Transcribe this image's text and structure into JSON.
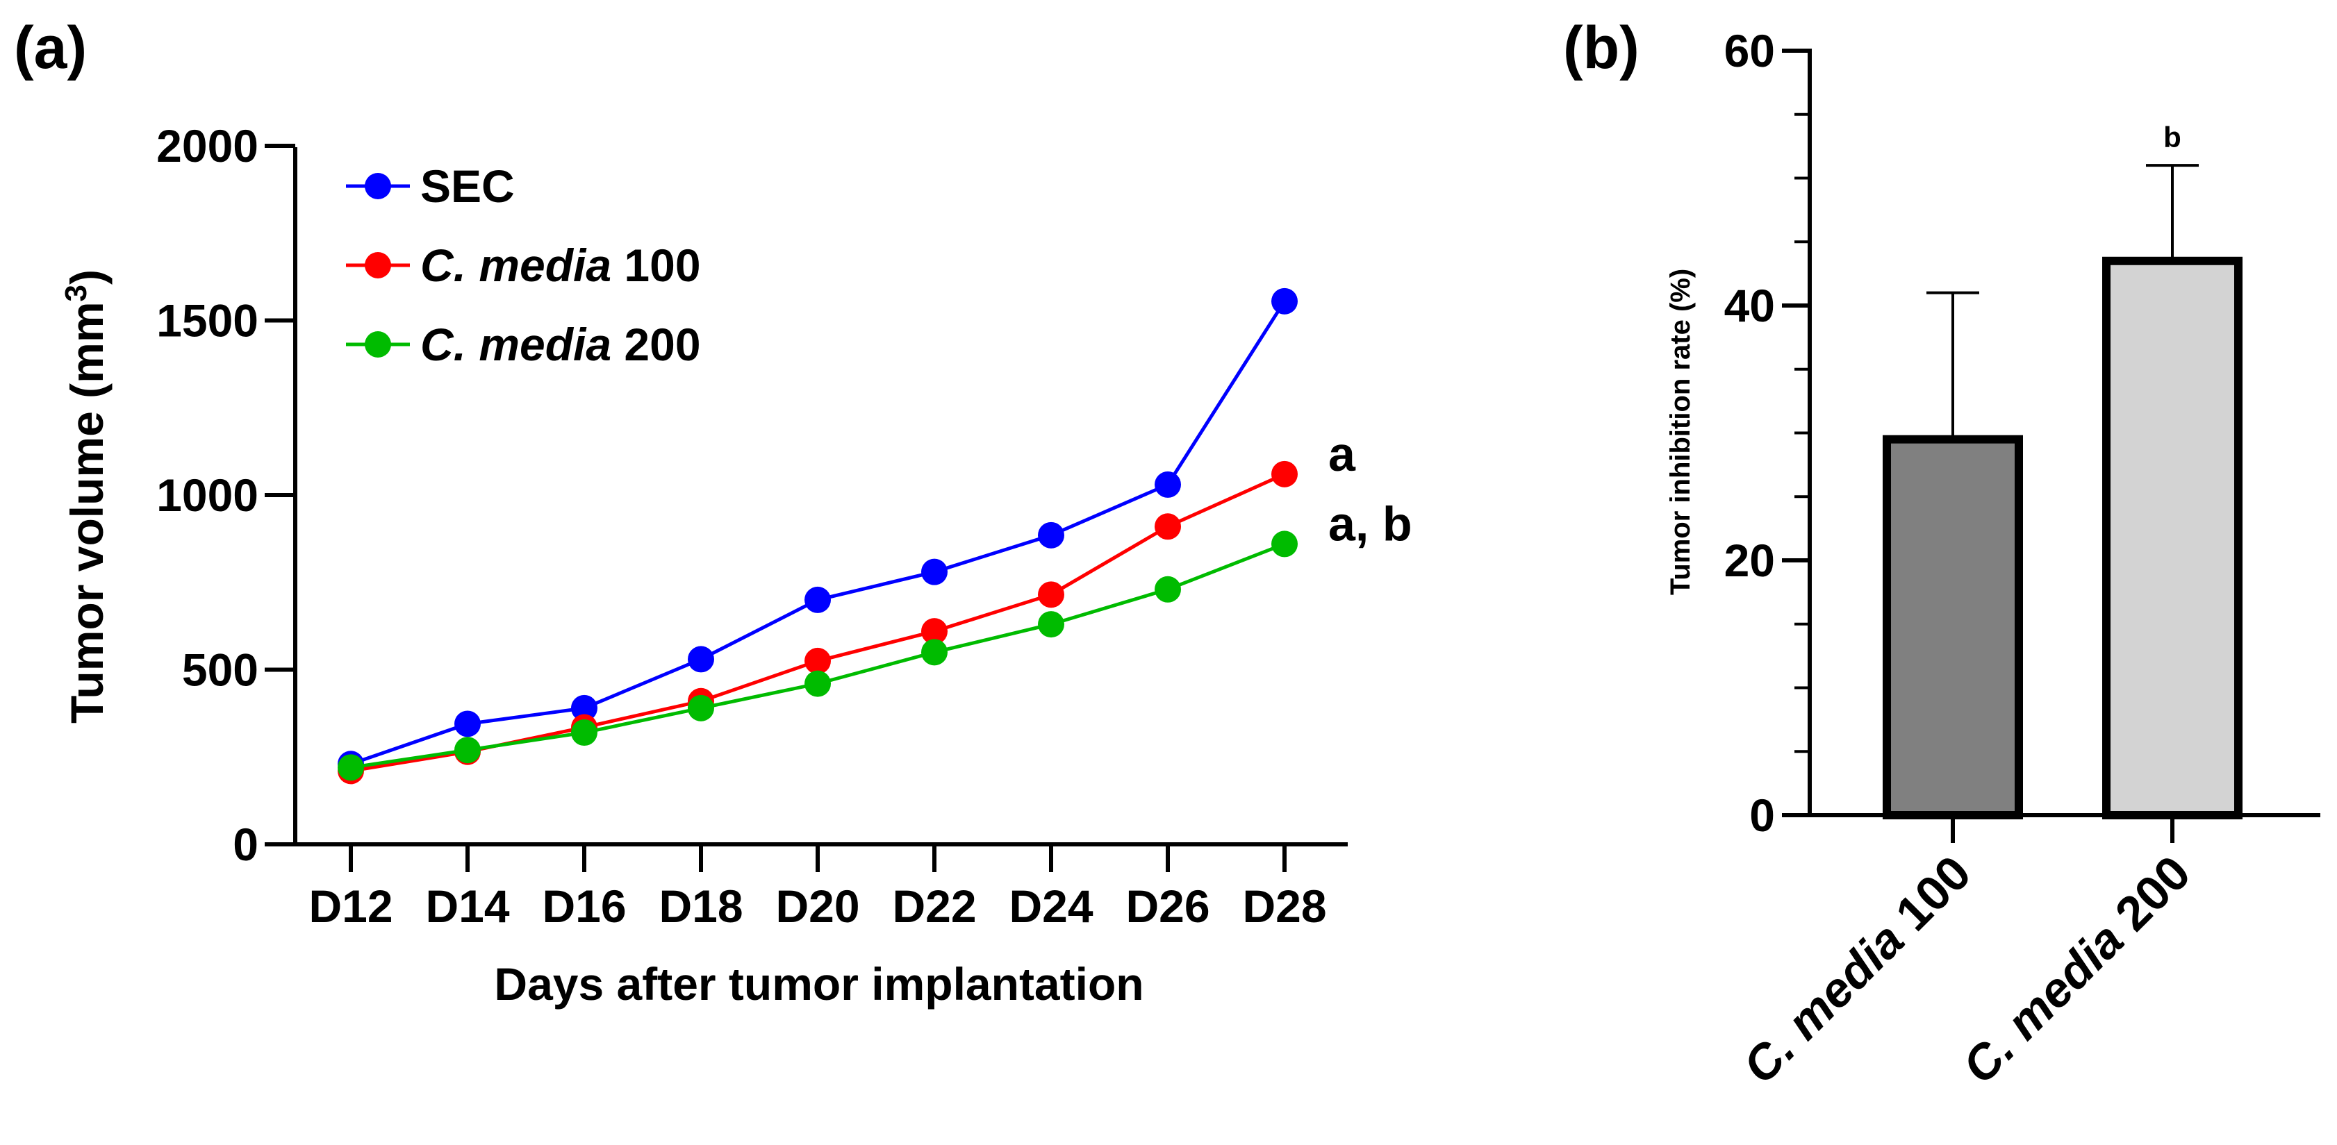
{
  "chart_data": [
    {
      "type": "line",
      "panel_label": "(a)",
      "title": "",
      "xlabel": "Days after tumor implantation",
      "ylabel_main": "Tumor volume (mm",
      "ylabel_sup": "3",
      "ylabel_close": ")",
      "categories": [
        "D12",
        "D14",
        "D16",
        "D18",
        "D20",
        "D22",
        "D24",
        "D26",
        "D28"
      ],
      "ylim": [
        0,
        2000
      ],
      "yticks": [
        "0",
        "500",
        "1000",
        "1500",
        "2000"
      ],
      "legend_position": "top-left",
      "series": [
        {
          "name": "SEC",
          "legend_italic": "",
          "legend_plain": "SEC",
          "color": "#0000ff",
          "values": [
            230,
            345,
            390,
            530,
            700,
            780,
            885,
            1030,
            1555
          ]
        },
        {
          "name": "C. media 100",
          "legend_italic": "C. media",
          "legend_plain": " 100",
          "color": "#ff0000",
          "values": [
            210,
            265,
            335,
            410,
            525,
            610,
            715,
            910,
            1060
          ]
        },
        {
          "name": "C. media 200",
          "legend_italic": "C. media",
          "legend_plain": " 200",
          "color": "#00bb00",
          "values": [
            220,
            270,
            320,
            390,
            460,
            550,
            630,
            730,
            860
          ]
        }
      ],
      "annotations": [
        {
          "text": "a",
          "series": "C. media 100"
        },
        {
          "text": "a, b",
          "series": "C. media 200"
        }
      ]
    },
    {
      "type": "bar",
      "panel_label": "(b)",
      "title": "",
      "xlabel": "",
      "ylabel": "Tumor inhibition rate (%)",
      "ylim": [
        0,
        60
      ],
      "yticks": [
        "0",
        "20",
        "40",
        "60"
      ],
      "categories": [
        {
          "italic": "C. media",
          "plain": " 100"
        },
        {
          "italic": "C. media",
          "plain": " 200"
        }
      ],
      "values": [
        29.5,
        43.5
      ],
      "error_upper": [
        41,
        51
      ],
      "colors": [
        "#808080",
        "#d3d3d3"
      ],
      "significance": [
        "",
        "b"
      ]
    }
  ]
}
